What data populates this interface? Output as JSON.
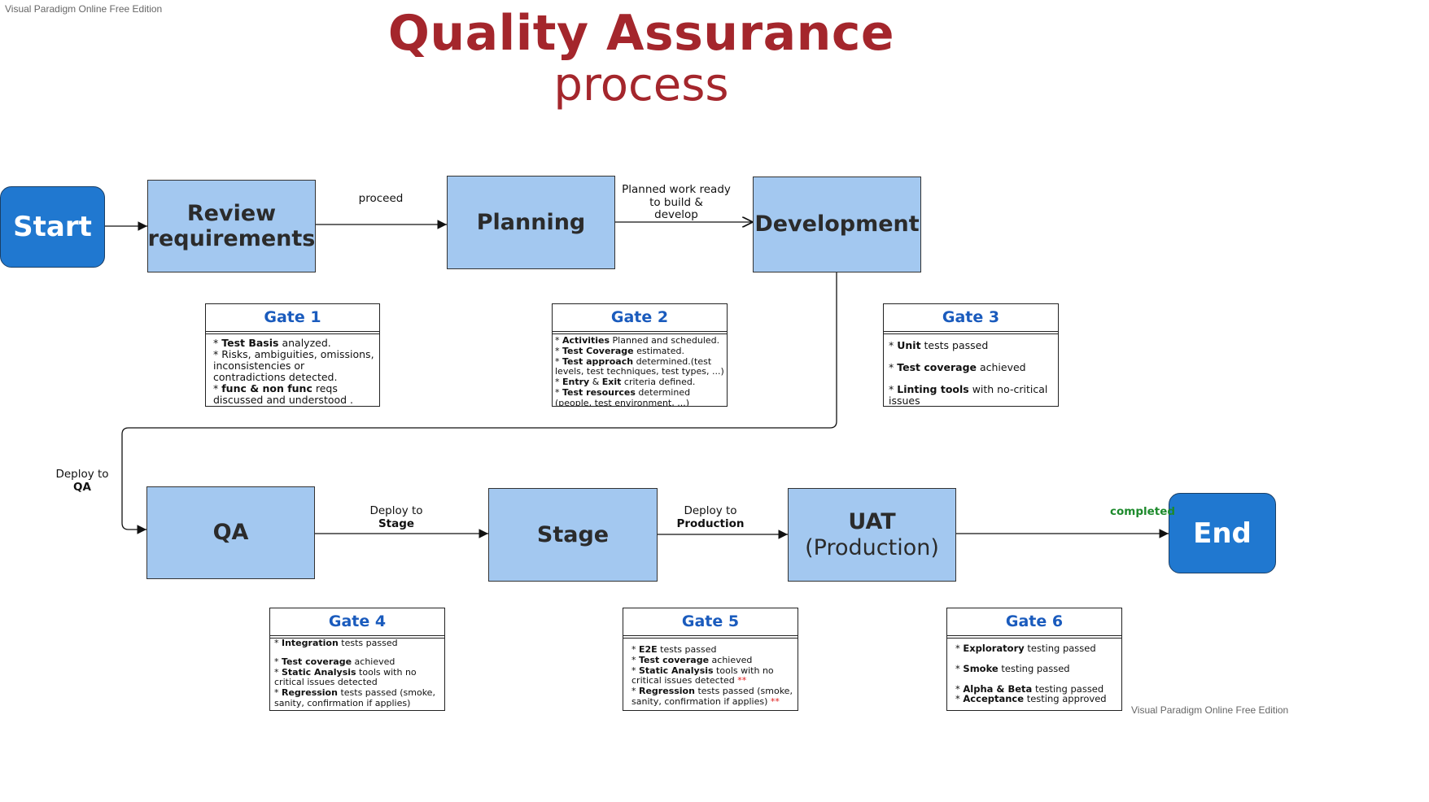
{
  "watermark": {
    "top_left": "Visual Paradigm Online Free Edition",
    "bottom_right": "Visual Paradigm Online Free Edition"
  },
  "title": {
    "main": "Quality Assurance",
    "sub": "process"
  },
  "nodes": {
    "start": "Start",
    "review": {
      "line1": "Review",
      "line2": "requirements"
    },
    "planning": "Planning",
    "development": "Development",
    "qa": "QA",
    "stage": "Stage",
    "uat": {
      "line1": "UAT",
      "line2": "(Production)"
    },
    "end": "End"
  },
  "edges": {
    "proceed": "proceed",
    "planned": {
      "line1": "Planned work ready",
      "line2": "to build &",
      "line3": "develop"
    },
    "deploy_qa": {
      "line1": "Deploy to",
      "line2": "QA"
    },
    "deploy_stage": {
      "line1": "Deploy to",
      "line2": "Stage"
    },
    "deploy_prod": {
      "line1": "Deploy to",
      "line2": "Production"
    },
    "completed": "completed"
  },
  "gates": {
    "g1": {
      "title": "Gate 1",
      "items": [
        {
          "pre": "* ",
          "bold": "Test Basis",
          "rest": " analyzed."
        },
        {
          "pre": "* Risks, ambiguities, omissions, inconsistencies or contradictions detected.",
          "bold": "",
          "rest": ""
        },
        {
          "pre": "* ",
          "bold": "func & non func",
          "rest": " reqs discussed and understood ."
        }
      ]
    },
    "g2": {
      "title": "Gate 2",
      "items": [
        {
          "pre": "* ",
          "bold": "Activities",
          "rest": " Planned and scheduled."
        },
        {
          "pre": "* ",
          "bold": "Test Coverage",
          "rest": " estimated."
        },
        {
          "pre": "* ",
          "bold": "Test approach",
          "rest": " determined.(test levels, test techniques, test types, ...)"
        },
        {
          "pre": "* ",
          "bold": "Entry",
          "mid": " & ",
          "bold2": "Exit",
          "rest": " criteria defined."
        },
        {
          "pre": "* ",
          "bold": "Test resources",
          "rest": " determined (people, test environment, ...)"
        }
      ]
    },
    "g3": {
      "title": "Gate 3",
      "items": [
        {
          "pre": "* ",
          "bold": "Unit",
          "rest": " tests passed"
        },
        {
          "pre": "* ",
          "bold": "Test coverage",
          "rest": " achieved"
        },
        {
          "pre": "* ",
          "bold": "Linting tools",
          "rest": " with no-critical issues"
        }
      ]
    },
    "g4": {
      "title": "Gate 4",
      "items": [
        {
          "pre": "* ",
          "bold": "Integration",
          "rest": " tests passed"
        },
        {
          "pre": "* ",
          "bold": "Test coverage",
          "rest": " achieved"
        },
        {
          "pre": "* ",
          "bold": "Static Analysis",
          "rest": " tools with no critical issues detected"
        },
        {
          "pre": "* ",
          "bold": "Regression",
          "rest": " tests passed (smoke, sanity, confirmation if applies)"
        }
      ]
    },
    "g5": {
      "title": "Gate 5",
      "items": [
        {
          "pre": "* ",
          "bold": "E2E",
          "rest": " tests passed"
        },
        {
          "pre": "* ",
          "bold": "Test coverage",
          "rest": " achieved"
        },
        {
          "pre": "* ",
          "bold": "Static Analysis",
          "rest": " tools with no critical issues detected ",
          "mark": "**"
        },
        {
          "pre": "* ",
          "bold": "Regression",
          "rest": " tests passed (smoke, sanity, confirmation if applies)  ",
          "mark": "**"
        }
      ]
    },
    "g6": {
      "title": "Gate 6",
      "items": [
        {
          "pre": "* ",
          "bold": "Exploratory",
          "rest": " testing passed"
        },
        {
          "pre": "* ",
          "bold": "Smoke",
          "rest": " testing passed"
        },
        {
          "pre": "* ",
          "bold": "Alpha & Beta",
          "rest": " testing passed"
        },
        {
          "pre": "* ",
          "bold": "Acceptance",
          "rest": " testing approved"
        }
      ]
    }
  },
  "colors": {
    "title": "#a4262c",
    "terminal_fill": "#2078d0",
    "process_fill": "#a3c8f0",
    "gate_title": "#1a5bbd",
    "completed": "#1d8a2c",
    "marker": "#e01b1b"
  }
}
